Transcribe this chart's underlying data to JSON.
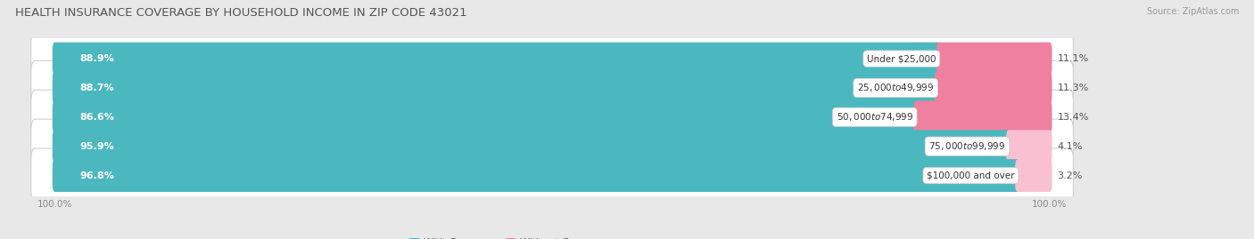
{
  "title": "HEALTH INSURANCE COVERAGE BY HOUSEHOLD INCOME IN ZIP CODE 43021",
  "source": "Source: ZipAtlas.com",
  "categories": [
    "Under $25,000",
    "$25,000 to $49,999",
    "$50,000 to $74,999",
    "$75,000 to $99,999",
    "$100,000 and over"
  ],
  "with_coverage": [
    88.9,
    88.7,
    86.6,
    95.9,
    96.8
  ],
  "without_coverage": [
    11.1,
    11.3,
    13.4,
    4.1,
    3.2
  ],
  "color_with": "#4BB8C0",
  "color_without": "#F080A0",
  "color_without_light": "#F8C0D0",
  "bg_color": "#e8e8e8",
  "row_bg_color": "#f5f5f5",
  "title_fontsize": 9.5,
  "label_fontsize": 8,
  "category_fontsize": 7.5,
  "tick_fontsize": 7.5,
  "legend_fontsize": 8,
  "x_left_label": "100.0%",
  "x_right_label": "100.0%",
  "total_width": 100
}
